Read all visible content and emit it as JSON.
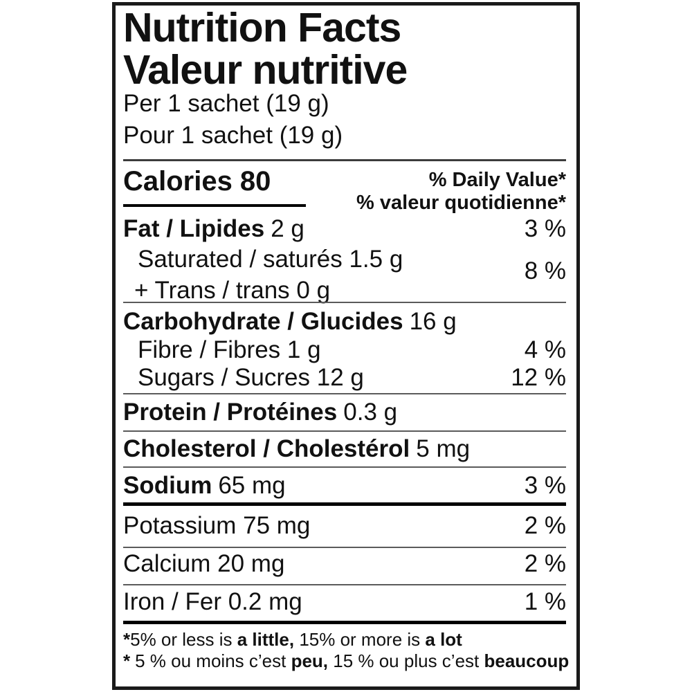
{
  "label": {
    "title_en": "Nutrition Facts",
    "title_fr": "Valeur nutritive",
    "serving_en": "Per 1 sachet (19 g)",
    "serving_fr": "Pour 1 sachet (19 g)",
    "calories": {
      "label": "Calories",
      "value": "80"
    },
    "dv_header_en": "% Daily Value*",
    "dv_header_fr": "% valeur quotidienne*",
    "nutrients": {
      "fat": {
        "name": "Fat / Lipides",
        "amount": "2 g",
        "dv": "3 %"
      },
      "saturated": {
        "name": "Saturated / saturés 1.5 g"
      },
      "trans": {
        "name": "+ Trans / trans 0 g"
      },
      "saturated_trans_dv": "8 %",
      "carbohydrate": {
        "name": "Carbohydrate / Glucides",
        "amount": "16 g"
      },
      "fibre": {
        "name": "Fibre / Fibres 1 g",
        "dv": "4 %"
      },
      "sugars": {
        "name": "Sugars / Sucres 12 g",
        "dv": "12 %"
      },
      "protein": {
        "name": "Protein / Protéines",
        "amount": "0.3 g"
      },
      "cholesterol": {
        "name": "Cholesterol / Cholestérol",
        "amount": "5 mg"
      },
      "sodium": {
        "name": "Sodium",
        "amount": "65 mg",
        "dv": "3 %"
      },
      "potassium": {
        "name": "Potassium 75 mg",
        "dv": "2 %"
      },
      "calcium": {
        "name": "Calcium 20 mg",
        "dv": "2 %"
      },
      "iron": {
        "name": "Iron / Fer 0.2 mg",
        "dv": "1 %"
      }
    },
    "footnote": {
      "en": {
        "asterisk": "*",
        "pre": "5% or less is ",
        "bold1": "a little,",
        "mid": " 15% or more is ",
        "bold2": "a lot"
      },
      "fr": {
        "asterisk": "*",
        "pre": "5 % ou moins c’est ",
        "bold1": "peu,",
        "mid": " 15 % ou plus c’est ",
        "bold2": "beaucoup"
      }
    }
  }
}
